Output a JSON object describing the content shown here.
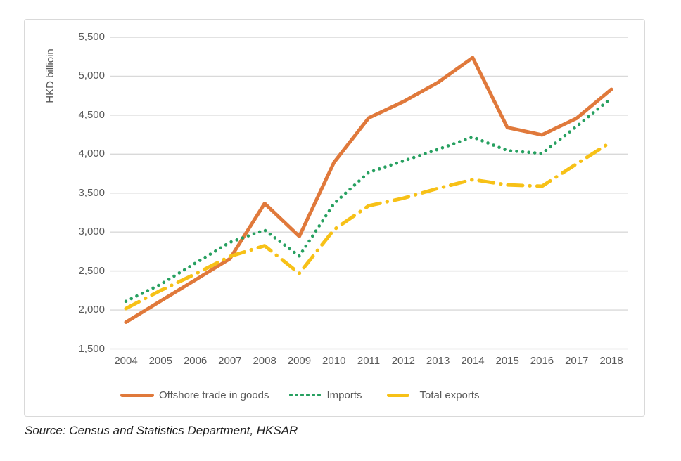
{
  "chart_data": {
    "type": "line",
    "title": "",
    "ylabel": "HKD billioin",
    "xlabel": "",
    "ylim": [
      1500,
      5500
    ],
    "ytick_step": 500,
    "y_tick_labels": [
      "1,500",
      "2,000",
      "2,500",
      "3,000",
      "3,500",
      "4,000",
      "4,500",
      "5,000",
      "5,500"
    ],
    "grid": "horizontal",
    "legend_position": "bottom",
    "x": [
      "2004",
      "2005",
      "2006",
      "2007",
      "2008",
      "2009",
      "2010",
      "2011",
      "2012",
      "2013",
      "2014",
      "2015",
      "2016",
      "2017",
      "2018"
    ],
    "series": [
      {
        "name": "Offshore trade in goods",
        "style": "solid",
        "color": "#E0793B",
        "values": [
          1843,
          2115,
          2385,
          2658,
          3367,
          2945,
          3893,
          4464,
          4673,
          4920,
          5238,
          4341,
          4247,
          4461,
          4832
        ]
      },
      {
        "name": "Imports",
        "style": "dotted",
        "color": "#27A060",
        "values": [
          2111,
          2329,
          2600,
          2868,
          3025,
          2692,
          3365,
          3765,
          3912,
          4061,
          4219,
          4046,
          4008,
          4357,
          4721
        ]
      },
      {
        "name": "Total exports",
        "style": "dash-dot",
        "color": "#F7C117",
        "values": [
          2019,
          2250,
          2461,
          2688,
          2824,
          2469,
          3031,
          3337,
          3434,
          3560,
          3673,
          3605,
          3588,
          3876,
          4158
        ]
      }
    ],
    "gridline_color": "#D9D9D9",
    "axis_text_color": "#595959"
  },
  "source_note": "Source: Census and Statistics Department, HKSAR"
}
